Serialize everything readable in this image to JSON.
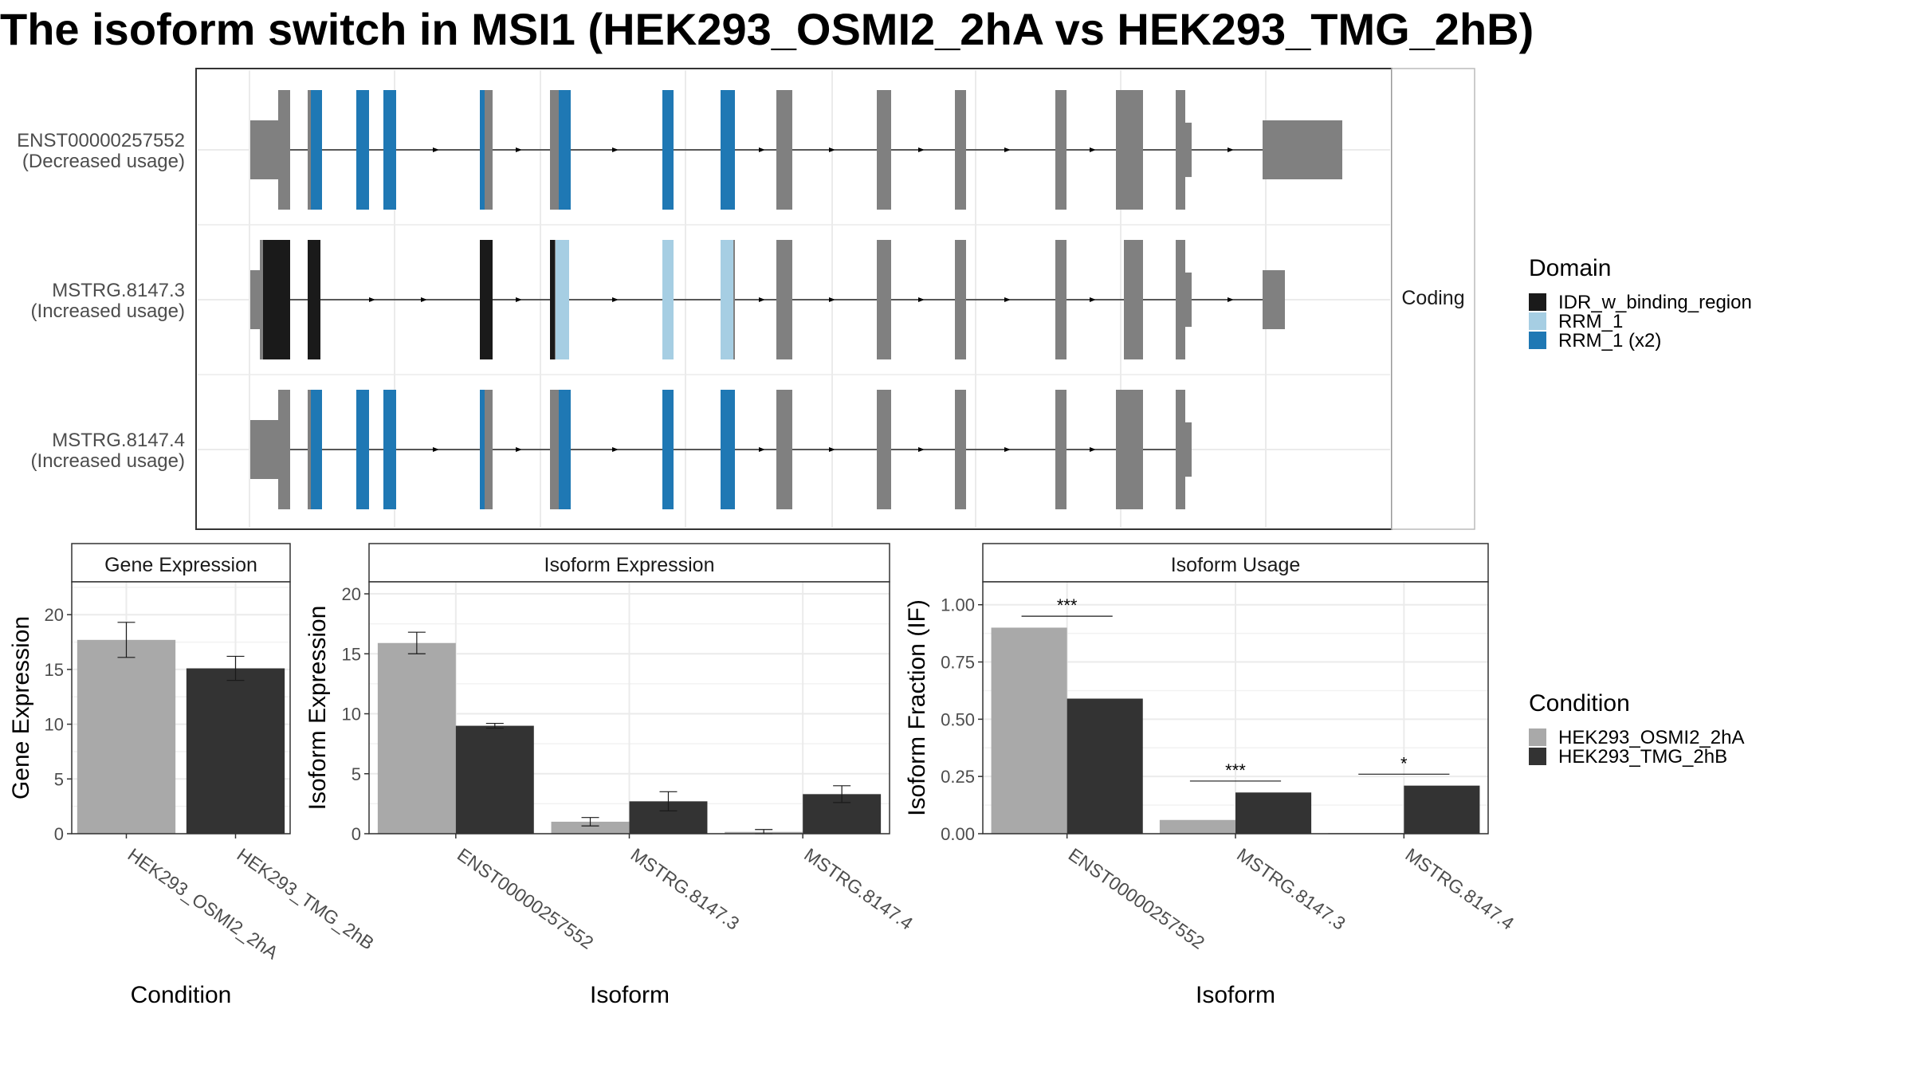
{
  "title": "The isoform switch in MSI1 (HEK293_OSMI2_2hA vs HEK293_TMG_2hB)",
  "colors": {
    "exon": "#808080",
    "idr": "#1a1a1a",
    "rrm1": "#a6cee3",
    "rrm1x2": "#1f78b4",
    "cond_a": "#a9a9a9",
    "cond_b": "#333333",
    "panel_border": "#333333",
    "strip_bg": "#ffffff",
    "grid": "#ebebeb"
  },
  "transcripts": {
    "facet_label": "Coding",
    "rows": [
      {
        "label1": "ENST00000257552",
        "label2": "(Decreased usage)"
      },
      {
        "label1": "MSTRG.8147.3",
        "label2": "(Increased usage)"
      },
      {
        "label1": "MSTRG.8147.4",
        "label2": "(Increased usage)"
      }
    ]
  },
  "domain_legend": {
    "title": "Domain",
    "items": [
      {
        "label": "IDR_w_binding_region",
        "color": "#1a1a1a"
      },
      {
        "label": "RRM_1",
        "color": "#a6cee3"
      },
      {
        "label": "RRM_1 (x2)",
        "color": "#1f78b4"
      }
    ]
  },
  "condition_legend": {
    "title": "Condition",
    "items": [
      {
        "label": "HEK293_OSMI2_2hA",
        "color": "#a9a9a9"
      },
      {
        "label": "HEK293_TMG_2hB",
        "color": "#333333"
      }
    ]
  },
  "chart_data": [
    {
      "type": "bar",
      "title": "Gene Expression",
      "xlabel": "Condition",
      "ylabel": "Gene Expression",
      "ylim": [
        0,
        23
      ],
      "yticks": [
        0,
        5,
        10,
        15,
        20
      ],
      "ytick_labels": [
        "0",
        "5",
        "10",
        "15",
        "20"
      ],
      "categories": [
        "HEK293_OSMI2_2hA",
        "HEK293_TMG_2hB"
      ],
      "bars": [
        {
          "value": 17.7,
          "err": 1.6,
          "condition": 0
        },
        {
          "value": 15.1,
          "err": 1.1,
          "condition": 1
        }
      ]
    },
    {
      "type": "bar",
      "title": "Isoform Expression",
      "xlabel": "Isoform",
      "ylabel": "Isoform Expression",
      "ylim": [
        0,
        21
      ],
      "yticks": [
        0,
        5,
        10,
        15,
        20
      ],
      "ytick_labels": [
        "0",
        "5",
        "10",
        "15",
        "20"
      ],
      "categories": [
        "ENST00000257552",
        "MSTRG.8147.3",
        "MSTRG.8147.4"
      ],
      "series": [
        {
          "name": "HEK293_OSMI2_2hA",
          "values": [
            15.9,
            1.0,
            0.15
          ],
          "err": [
            0.9,
            0.35,
            0.2
          ]
        },
        {
          "name": "HEK293_TMG_2hB",
          "values": [
            9.0,
            2.7,
            3.3
          ],
          "err": [
            0.2,
            0.8,
            0.7
          ]
        }
      ]
    },
    {
      "type": "bar",
      "title": "Isoform Usage",
      "xlabel": "Isoform",
      "ylabel": "Isoform Fraction (IF)",
      "ylim": [
        0,
        1.1
      ],
      "yticks": [
        0,
        0.25,
        0.5,
        0.75,
        1.0
      ],
      "ytick_labels": [
        "0.00",
        "0.25",
        "0.50",
        "0.75",
        "1.00"
      ],
      "categories": [
        "ENST00000257552",
        "MSTRG.8147.3",
        "MSTRG.8147.4"
      ],
      "series": [
        {
          "name": "HEK293_OSMI2_2hA",
          "values": [
            0.9,
            0.06,
            0.003
          ]
        },
        {
          "name": "HEK293_TMG_2hB",
          "values": [
            0.59,
            0.18,
            0.21
          ]
        }
      ],
      "significance": [
        {
          "category": 0,
          "label": "***",
          "y": 0.95
        },
        {
          "category": 1,
          "label": "***",
          "y": 0.23
        },
        {
          "category": 2,
          "label": "*",
          "y": 0.26
        }
      ]
    }
  ]
}
